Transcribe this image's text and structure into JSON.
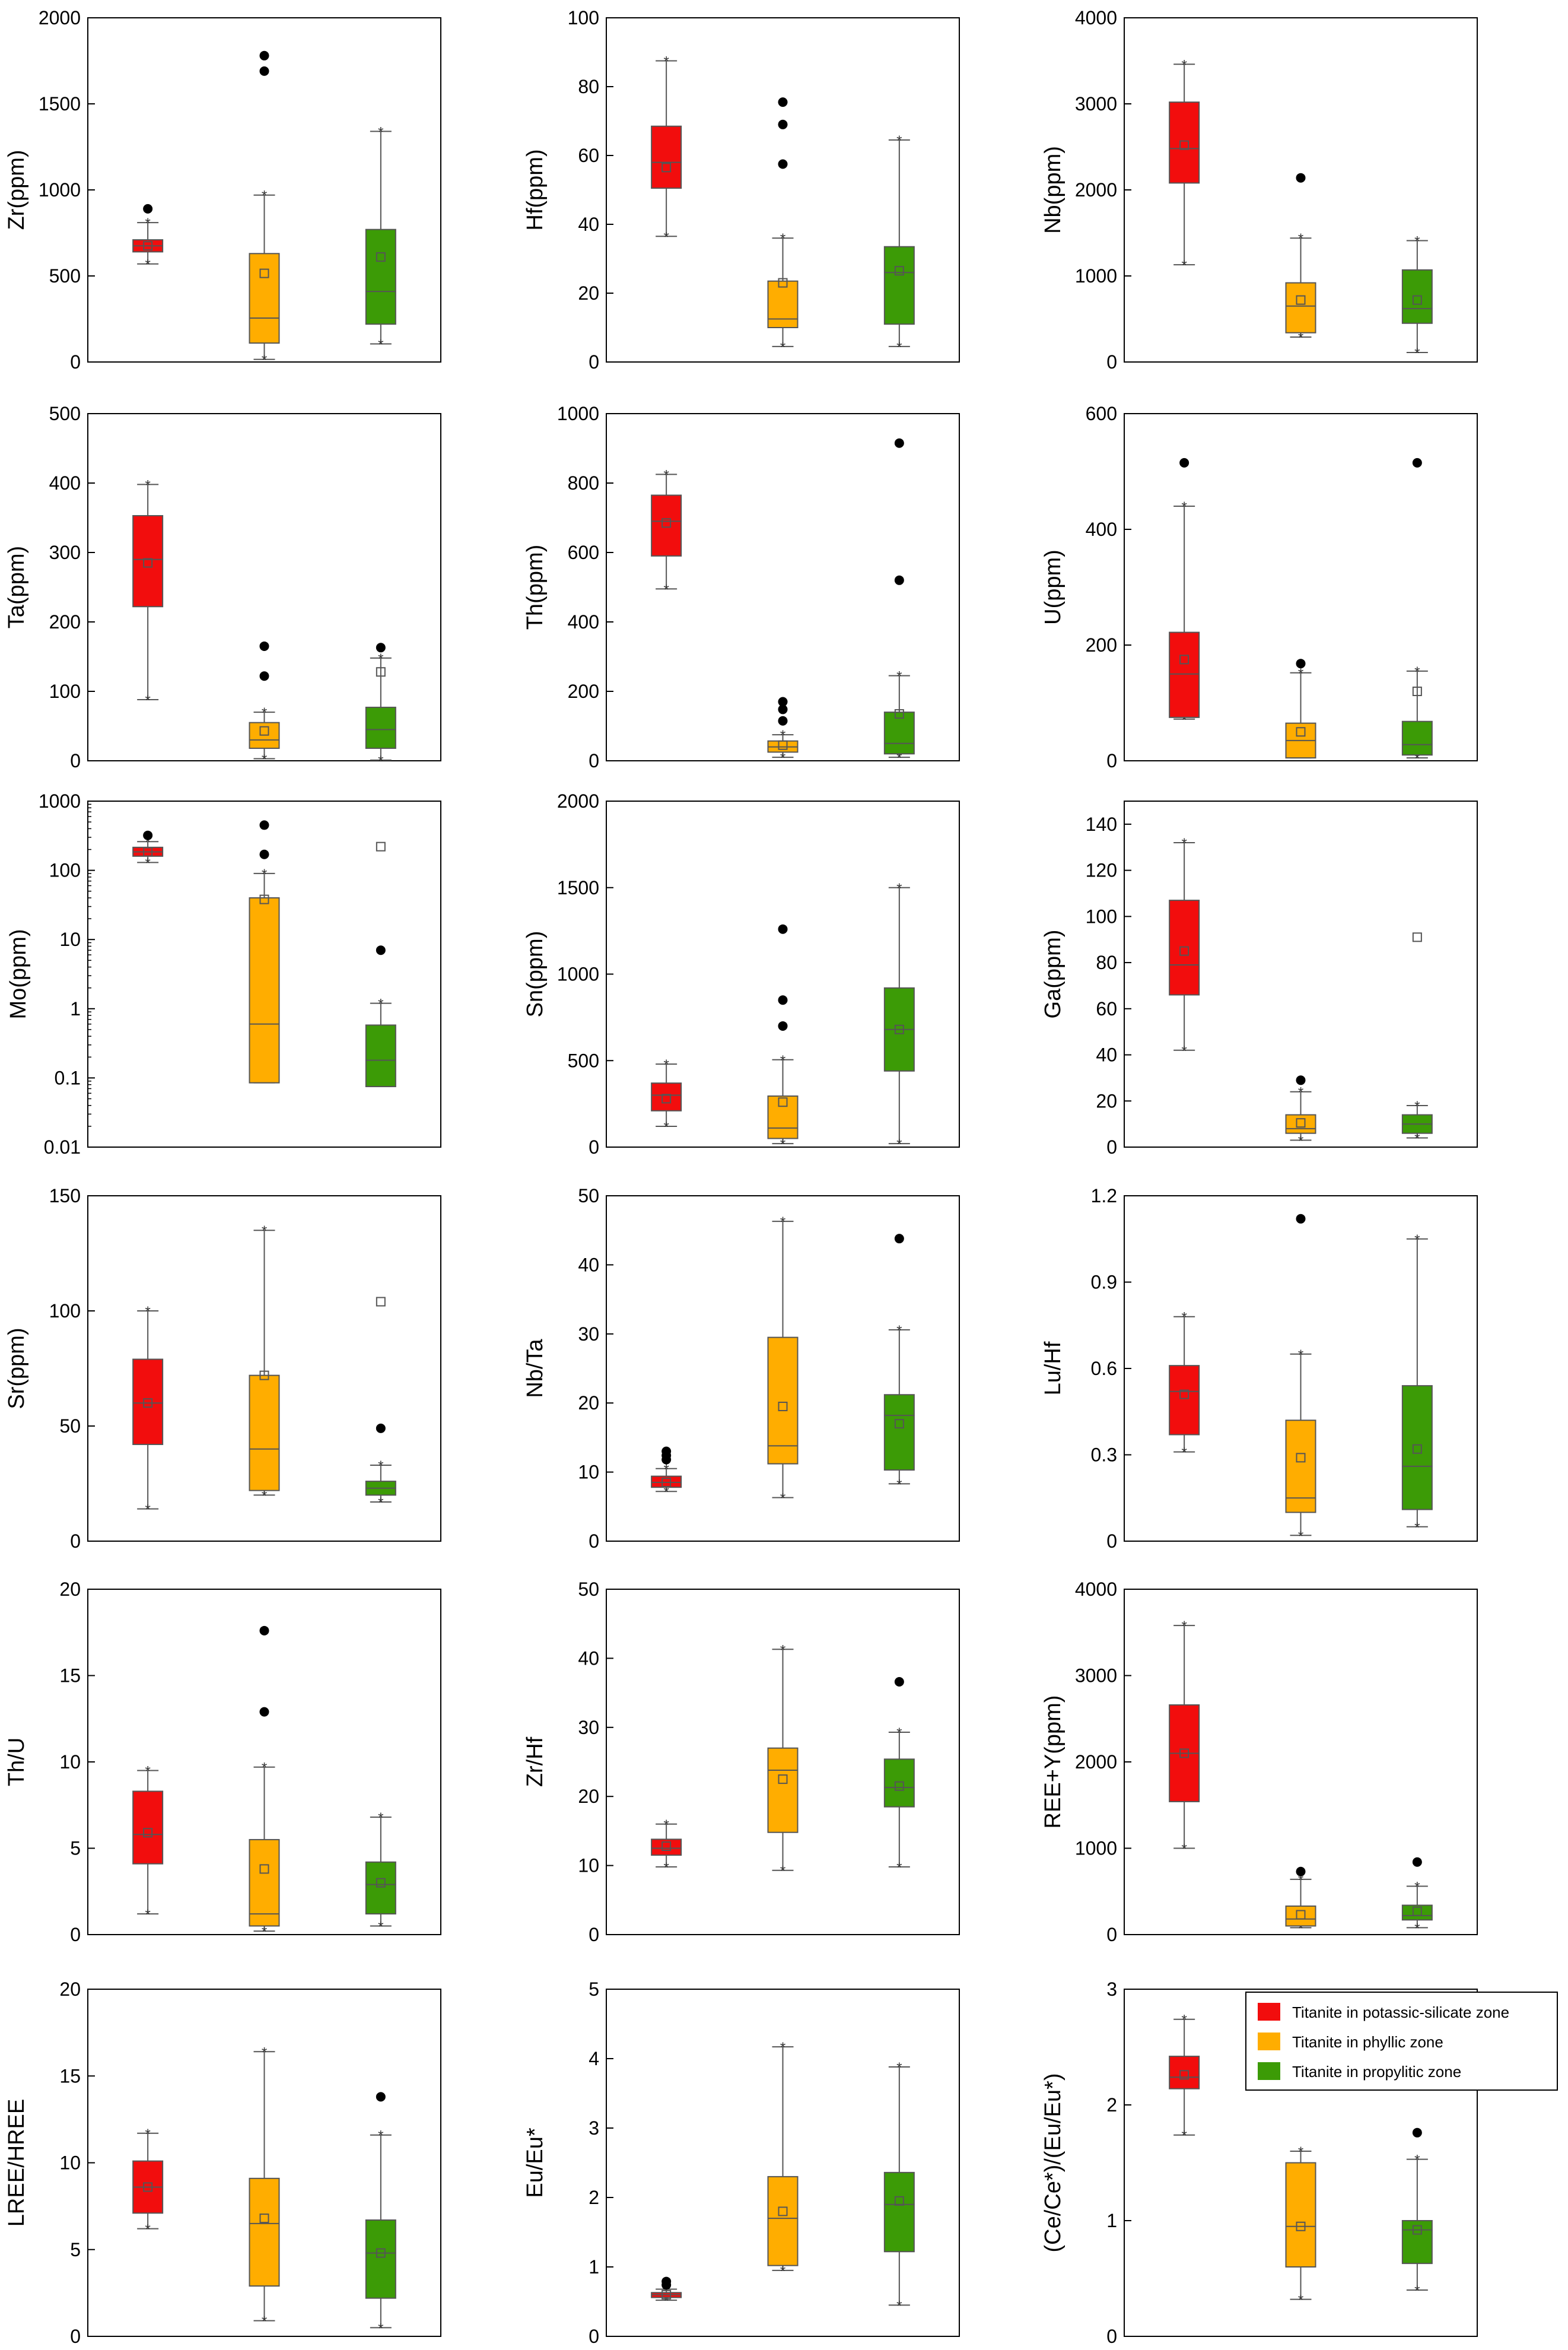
{
  "figure": {
    "groups": [
      "Titanite in potassic-silicate zone",
      "Titanite in phyllic zone",
      "Titanite in propylitic zone"
    ],
    "colors": [
      "#f20d0d",
      "#ffad00",
      "#3c9b06"
    ],
    "legend_position": "top-right of last panel"
  },
  "chart_data": [
    {
      "type": "box",
      "ylabel": "Zr(ppm)",
      "ylim": [
        0,
        2000
      ],
      "yticks": [
        0,
        500,
        1000,
        1500,
        2000
      ],
      "tick_labels": [
        "0",
        "500",
        "1000",
        "1500",
        "2000"
      ],
      "log": false,
      "boxes": [
        {
          "q1": 640,
          "median": 675,
          "q3": 710,
          "whisker_low": 570,
          "whisker_high": 810,
          "mean": 675,
          "outliers": [
            890
          ]
        },
        {
          "q1": 110,
          "median": 255,
          "q3": 630,
          "whisker_low": 15,
          "whisker_high": 970,
          "mean": 515,
          "outliers": [
            1690,
            1780
          ]
        },
        {
          "q1": 220,
          "median": 410,
          "q3": 770,
          "whisker_low": 105,
          "whisker_high": 1340,
          "mean": 610,
          "outliers": []
        }
      ]
    },
    {
      "type": "box",
      "ylabel": "Hf(ppm)",
      "ylim": [
        0,
        100
      ],
      "yticks": [
        0,
        20,
        40,
        60,
        80,
        100
      ],
      "tick_labels": [
        "0",
        "20",
        "40",
        "60",
        "80",
        "100"
      ],
      "log": false,
      "boxes": [
        {
          "q1": 50.5,
          "median": 58,
          "q3": 68.5,
          "whisker_low": 36.5,
          "whisker_high": 87.5,
          "mean": 56.5,
          "outliers": []
        },
        {
          "q1": 10,
          "median": 12.5,
          "q3": 23.5,
          "whisker_low": 4.5,
          "whisker_high": 36,
          "mean": 23,
          "outliers": [
            57.5,
            69,
            75.5
          ]
        },
        {
          "q1": 11,
          "median": 26,
          "q3": 33.5,
          "whisker_low": 4.5,
          "whisker_high": 64.5,
          "mean": 26.5,
          "outliers": []
        }
      ]
    },
    {
      "type": "box",
      "ylabel": "Nb(ppm)",
      "ylim": [
        0,
        4000
      ],
      "yticks": [
        0,
        1000,
        2000,
        3000,
        4000
      ],
      "tick_labels": [
        "0",
        "1000",
        "2000",
        "3000",
        "4000"
      ],
      "log": false,
      "boxes": [
        {
          "q1": 2080,
          "median": 2480,
          "q3": 3020,
          "whisker_low": 1130,
          "whisker_high": 3460,
          "mean": 2520,
          "outliers": []
        },
        {
          "q1": 340,
          "median": 650,
          "q3": 920,
          "whisker_low": 290,
          "whisker_high": 1440,
          "mean": 720,
          "outliers": [
            2140
          ]
        },
        {
          "q1": 450,
          "median": 620,
          "q3": 1070,
          "whisker_low": 110,
          "whisker_high": 1410,
          "mean": 720,
          "outliers": []
        }
      ]
    },
    {
      "type": "box",
      "ylabel": "Ta(ppm)",
      "ylim": [
        0,
        500
      ],
      "yticks": [
        0,
        100,
        200,
        300,
        400,
        500
      ],
      "tick_labels": [
        "0",
        "100",
        "200",
        "300",
        "400",
        "500"
      ],
      "log": false,
      "boxes": [
        {
          "q1": 222,
          "median": 290,
          "q3": 353,
          "whisker_low": 88,
          "whisker_high": 398,
          "mean": 285,
          "outliers": []
        },
        {
          "q1": 18,
          "median": 30,
          "q3": 55,
          "whisker_low": 3,
          "whisker_high": 70,
          "mean": 43,
          "outliers": [
            122,
            165
          ]
        },
        {
          "q1": 18,
          "median": 45,
          "q3": 77,
          "whisker_low": 1,
          "whisker_high": 148,
          "mean": 128,
          "outliers": [
            163
          ]
        }
      ]
    },
    {
      "type": "box",
      "ylabel": "Th(ppm)",
      "ylim": [
        0,
        1000
      ],
      "yticks": [
        0,
        200,
        400,
        600,
        800,
        1000
      ],
      "tick_labels": [
        "0",
        "200",
        "400",
        "600",
        "800",
        "1000"
      ],
      "log": false,
      "boxes": [
        {
          "q1": 590,
          "median": 690,
          "q3": 765,
          "whisker_low": 495,
          "whisker_high": 825,
          "mean": 685,
          "outliers": []
        },
        {
          "q1": 25,
          "median": 40,
          "q3": 57,
          "whisker_low": 10,
          "whisker_high": 75,
          "mean": 45,
          "outliers": [
            115,
            148,
            170
          ]
        },
        {
          "q1": 20,
          "median": 50,
          "q3": 140,
          "whisker_low": 10,
          "whisker_high": 245,
          "mean": 135,
          "outliers": [
            520,
            915
          ]
        }
      ]
    },
    {
      "type": "box",
      "ylabel": "U(ppm)",
      "ylim": [
        0,
        600
      ],
      "yticks": [
        0,
        200,
        400,
        600
      ],
      "tick_labels": [
        "0",
        "200",
        "400",
        "600"
      ],
      "log": false,
      "boxes": [
        {
          "q1": 75,
          "median": 150,
          "q3": 222,
          "whisker_low": 72,
          "whisker_high": 440,
          "mean": 175,
          "outliers": [
            515
          ]
        },
        {
          "q1": 5,
          "median": 35,
          "q3": 65,
          "whisker_low": 5,
          "whisker_high": 152,
          "mean": 50,
          "outliers": [
            168
          ]
        },
        {
          "q1": 10,
          "median": 28,
          "q3": 68,
          "whisker_low": 5,
          "whisker_high": 155,
          "mean": 120,
          "outliers": [
            515
          ]
        }
      ]
    },
    {
      "type": "box",
      "ylabel": "Mo(ppm)",
      "ylim": [
        0.01,
        1000
      ],
      "yticks": [
        0.01,
        0.1,
        1,
        10,
        100,
        1000
      ],
      "tick_labels": [
        "0.01",
        "0.1",
        "1",
        "10",
        "100",
        "1000"
      ],
      "log": true,
      "boxes": [
        {
          "q1": 160,
          "median": 185,
          "q3": 215,
          "whisker_low": 130,
          "whisker_high": 260,
          "mean": 185,
          "outliers": [
            320
          ]
        },
        {
          "q1": 0.085,
          "median": 0.6,
          "q3": 40,
          "whisker_low": 0.085,
          "whisker_high": 90,
          "mean": 38,
          "outliers": [
            170,
            450
          ]
        },
        {
          "q1": 0.075,
          "median": 0.18,
          "q3": 0.58,
          "whisker_low": 0.075,
          "whisker_high": 1.2,
          "mean": 220,
          "outliers": [
            7
          ]
        }
      ]
    },
    {
      "type": "box",
      "ylabel": "Sn(ppm)",
      "ylim": [
        0,
        2000
      ],
      "yticks": [
        0,
        500,
        1000,
        1500,
        2000
      ],
      "tick_labels": [
        "0",
        "500",
        "1000",
        "1500",
        "2000"
      ],
      "log": false,
      "boxes": [
        {
          "q1": 210,
          "median": 300,
          "q3": 370,
          "whisker_low": 120,
          "whisker_high": 480,
          "mean": 280,
          "outliers": []
        },
        {
          "q1": 50,
          "median": 110,
          "q3": 295,
          "whisker_low": 20,
          "whisker_high": 505,
          "mean": 260,
          "outliers": [
            700,
            850,
            1260
          ]
        },
        {
          "q1": 440,
          "median": 680,
          "q3": 920,
          "whisker_low": 20,
          "whisker_high": 1500,
          "mean": 680,
          "outliers": []
        }
      ]
    },
    {
      "type": "box",
      "ylabel": "Ga(ppm)",
      "ylim": [
        0,
        150
      ],
      "yticks": [
        0,
        20,
        40,
        60,
        80,
        100,
        120,
        140
      ],
      "tick_labels": [
        "0",
        "20",
        "40",
        "60",
        "80",
        "100",
        "120",
        "140"
      ],
      "log": false,
      "boxes": [
        {
          "q1": 66,
          "median": 79,
          "q3": 107,
          "whisker_low": 42,
          "whisker_high": 132,
          "mean": 85,
          "outliers": []
        },
        {
          "q1": 6,
          "median": 8,
          "q3": 14,
          "whisker_low": 3,
          "whisker_high": 24,
          "mean": 10.5,
          "outliers": [
            29
          ]
        },
        {
          "q1": 6,
          "median": 10,
          "q3": 14,
          "whisker_low": 4,
          "whisker_high": 18,
          "mean": 91,
          "outliers": []
        }
      ]
    },
    {
      "type": "box",
      "ylabel": "Sr(ppm)",
      "ylim": [
        0,
        150
      ],
      "yticks": [
        0,
        50,
        100,
        150
      ],
      "tick_labels": [
        "0",
        "50",
        "100",
        "150"
      ],
      "log": false,
      "boxes": [
        {
          "q1": 42,
          "median": 60,
          "q3": 79,
          "whisker_low": 14,
          "whisker_high": 100,
          "mean": 60,
          "outliers": []
        },
        {
          "q1": 22,
          "median": 40,
          "q3": 72,
          "whisker_low": 20,
          "whisker_high": 135,
          "mean": 72,
          "outliers": []
        },
        {
          "q1": 20,
          "median": 23,
          "q3": 26,
          "whisker_low": 17,
          "whisker_high": 33,
          "mean": 104,
          "outliers": [
            49
          ]
        }
      ]
    },
    {
      "type": "box",
      "ylabel": "Nb/Ta",
      "ylim": [
        0,
        50
      ],
      "yticks": [
        0,
        10,
        20,
        30,
        40,
        50
      ],
      "tick_labels": [
        "0",
        "10",
        "20",
        "30",
        "40",
        "50"
      ],
      "log": false,
      "boxes": [
        {
          "q1": 7.8,
          "median": 8.5,
          "q3": 9.4,
          "whisker_low": 7.2,
          "whisker_high": 10.5,
          "mean": 8.5,
          "outliers": [
            11.8,
            12.4,
            13
          ]
        },
        {
          "q1": 11.2,
          "median": 13.8,
          "q3": 29.5,
          "whisker_low": 6.3,
          "whisker_high": 46.3,
          "mean": 19.5,
          "outliers": []
        },
        {
          "q1": 10.3,
          "median": 18.2,
          "q3": 21.2,
          "whisker_low": 8.3,
          "whisker_high": 30.6,
          "mean": 17,
          "outliers": [
            43.8
          ]
        }
      ]
    },
    {
      "type": "box",
      "ylabel": "Lu/Hf",
      "ylim": [
        0,
        1.2
      ],
      "yticks": [
        0,
        0.3,
        0.6,
        0.9,
        1.2
      ],
      "tick_labels": [
        "0",
        "0.3",
        "0.6",
        "0.9",
        "1.2"
      ],
      "log": false,
      "boxes": [
        {
          "q1": 0.37,
          "median": 0.52,
          "q3": 0.61,
          "whisker_low": 0.31,
          "whisker_high": 0.78,
          "mean": 0.51,
          "outliers": []
        },
        {
          "q1": 0.1,
          "median": 0.15,
          "q3": 0.42,
          "whisker_low": 0.02,
          "whisker_high": 0.65,
          "mean": 0.29,
          "outliers": [
            1.12
          ]
        },
        {
          "q1": 0.11,
          "median": 0.26,
          "q3": 0.54,
          "whisker_low": 0.05,
          "whisker_high": 1.05,
          "mean": 0.32,
          "outliers": []
        }
      ]
    },
    {
      "type": "box",
      "ylabel": "Th/U",
      "ylim": [
        0,
        20
      ],
      "yticks": [
        0,
        5,
        10,
        15,
        20
      ],
      "tick_labels": [
        "0",
        "5",
        "10",
        "15",
        "20"
      ],
      "log": false,
      "boxes": [
        {
          "q1": 4.1,
          "median": 5.8,
          "q3": 8.3,
          "whisker_low": 1.2,
          "whisker_high": 9.5,
          "mean": 5.9,
          "outliers": []
        },
        {
          "q1": 0.5,
          "median": 1.2,
          "q3": 5.5,
          "whisker_low": 0.2,
          "whisker_high": 9.7,
          "mean": 3.8,
          "outliers": [
            12.9,
            17.6
          ]
        },
        {
          "q1": 1.2,
          "median": 2.9,
          "q3": 4.2,
          "whisker_low": 0.5,
          "whisker_high": 6.8,
          "mean": 3,
          "outliers": []
        }
      ]
    },
    {
      "type": "box",
      "ylabel": "Zr/Hf",
      "ylim": [
        0,
        50
      ],
      "yticks": [
        0,
        10,
        20,
        30,
        40,
        50
      ],
      "tick_labels": [
        "0",
        "10",
        "20",
        "30",
        "40",
        "50"
      ],
      "log": false,
      "boxes": [
        {
          "q1": 11.5,
          "median": 12.5,
          "q3": 13.8,
          "whisker_low": 9.8,
          "whisker_high": 16,
          "mean": 12.8,
          "outliers": []
        },
        {
          "q1": 14.8,
          "median": 23.8,
          "q3": 27,
          "whisker_low": 9.3,
          "whisker_high": 41.3,
          "mean": 22.5,
          "outliers": []
        },
        {
          "q1": 18.5,
          "median": 21.3,
          "q3": 25.4,
          "whisker_low": 9.8,
          "whisker_high": 29.3,
          "mean": 21.5,
          "outliers": [
            36.6
          ]
        }
      ]
    },
    {
      "type": "box",
      "ylabel": "REE+Y(ppm)",
      "ylim": [
        0,
        4000
      ],
      "yticks": [
        0,
        1000,
        2000,
        3000,
        4000
      ],
      "tick_labels": [
        "0",
        "1000",
        "2000",
        "3000",
        "4000"
      ],
      "log": false,
      "boxes": [
        {
          "q1": 1540,
          "median": 2100,
          "q3": 2660,
          "whisker_low": 1000,
          "whisker_high": 3580,
          "mean": 2100,
          "outliers": []
        },
        {
          "q1": 100,
          "median": 180,
          "q3": 330,
          "whisker_low": 80,
          "whisker_high": 640,
          "mean": 230,
          "outliers": [
            730
          ]
        },
        {
          "q1": 170,
          "median": 220,
          "q3": 340,
          "whisker_low": 80,
          "whisker_high": 560,
          "mean": 270,
          "outliers": [
            840
          ]
        }
      ]
    },
    {
      "type": "box",
      "ylabel": "LREE/HREE",
      "ylim": [
        0,
        20
      ],
      "yticks": [
        0,
        5,
        10,
        15,
        20
      ],
      "tick_labels": [
        "0",
        "5",
        "10",
        "15",
        "20"
      ],
      "log": false,
      "boxes": [
        {
          "q1": 7.1,
          "median": 8.6,
          "q3": 10.1,
          "whisker_low": 6.2,
          "whisker_high": 11.7,
          "mean": 8.6,
          "outliers": []
        },
        {
          "q1": 2.9,
          "median": 6.5,
          "q3": 9.1,
          "whisker_low": 0.9,
          "whisker_high": 16.4,
          "mean": 6.8,
          "outliers": []
        },
        {
          "q1": 2.2,
          "median": 4.8,
          "q3": 6.7,
          "whisker_low": 0.5,
          "whisker_high": 11.6,
          "mean": 4.8,
          "outliers": [
            13.8
          ]
        }
      ]
    },
    {
      "type": "box",
      "ylabel": "Eu/Eu*",
      "ylim": [
        0,
        5
      ],
      "yticks": [
        0,
        1,
        2,
        3,
        4,
        5
      ],
      "tick_labels": [
        "0",
        "1",
        "2",
        "3",
        "4",
        "5"
      ],
      "log": false,
      "boxes": [
        {
          "q1": 0.56,
          "median": 0.6,
          "q3": 0.63,
          "whisker_low": 0.52,
          "whisker_high": 0.68,
          "mean": 0.6,
          "outliers": [
            0.74,
            0.79
          ]
        },
        {
          "q1": 1.02,
          "median": 1.7,
          "q3": 2.3,
          "whisker_low": 0.95,
          "whisker_high": 4.17,
          "mean": 1.8,
          "outliers": []
        },
        {
          "q1": 1.22,
          "median": 1.9,
          "q3": 2.36,
          "whisker_low": 0.45,
          "whisker_high": 3.88,
          "mean": 1.95,
          "outliers": []
        }
      ]
    },
    {
      "type": "box",
      "ylabel": "(Ce/Ce*)/(Eu/Eu*)",
      "ylim": [
        0,
        3
      ],
      "yticks": [
        0,
        1,
        2,
        3
      ],
      "tick_labels": [
        "0",
        "1",
        "2",
        "3"
      ],
      "log": false,
      "boxes": [
        {
          "q1": 2.14,
          "median": 2.24,
          "q3": 2.42,
          "whisker_low": 1.74,
          "whisker_high": 2.74,
          "mean": 2.26,
          "outliers": []
        },
        {
          "q1": 0.6,
          "median": 0.95,
          "q3": 1.5,
          "whisker_low": 0.32,
          "whisker_high": 1.6,
          "mean": 0.95,
          "outliers": []
        },
        {
          "q1": 0.63,
          "median": 0.92,
          "q3": 1.0,
          "whisker_low": 0.4,
          "whisker_high": 1.53,
          "mean": 0.92,
          "outliers": [
            1.76
          ]
        }
      ]
    }
  ]
}
